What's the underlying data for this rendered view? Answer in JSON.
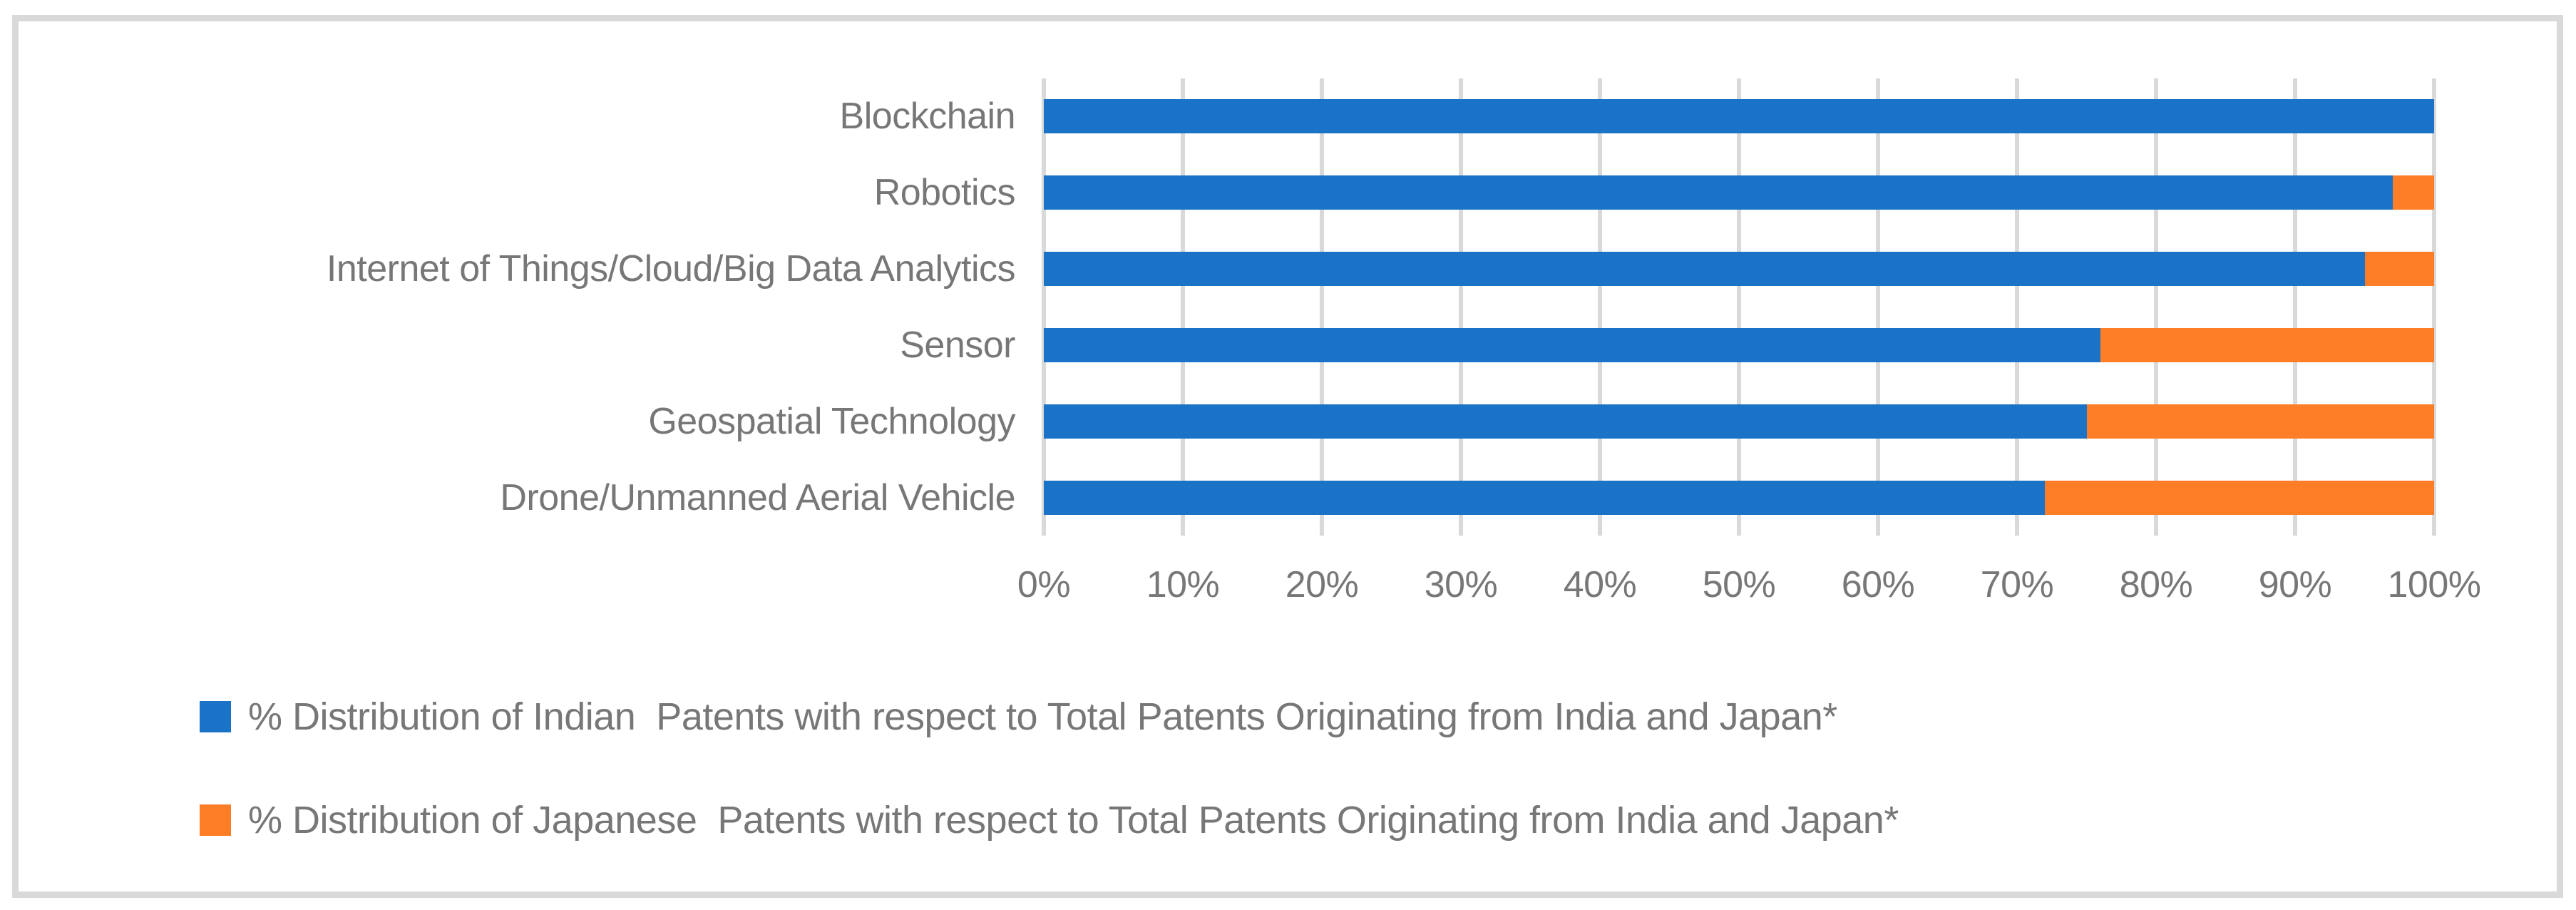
{
  "figure": {
    "background": "#FFFFFF",
    "border_color": "#D9D9D9"
  },
  "chart_data": {
    "type": "bar",
    "orientation": "horizontal",
    "stacked": true,
    "stacked_to_100_percent": true,
    "title": "",
    "xlabel": "",
    "ylabel": "",
    "categories": [
      "Blockchain",
      "Robotics",
      "Internet of Things/Cloud/Big Data Analytics",
      "Sensor",
      "Geospatial Technology",
      "Drone/Unmanned Aerial Vehicle"
    ],
    "series": [
      {
        "name": "% Distribution of Indian  Patents with respect to Total Patents Originating from India and Japan*",
        "color": "#1B73C7",
        "values": [
          100,
          97,
          95,
          76,
          75,
          72
        ]
      },
      {
        "name": "% Distribution of Japanese  Patents with respect to Total Patents Originating from India and Japan*",
        "color": "#FD7E26",
        "values": [
          0,
          3,
          5,
          24,
          25,
          28
        ]
      }
    ],
    "x_axis": {
      "min": 0,
      "max": 100,
      "tick_step": 10,
      "ticks": [
        "0%",
        "10%",
        "20%",
        "30%",
        "40%",
        "50%",
        "60%",
        "70%",
        "80%",
        "90%",
        "100%"
      ]
    },
    "grid": "vertical",
    "grid_color": "#D9D9D9",
    "text_color": "#777777",
    "legend_position": "bottom-left"
  }
}
